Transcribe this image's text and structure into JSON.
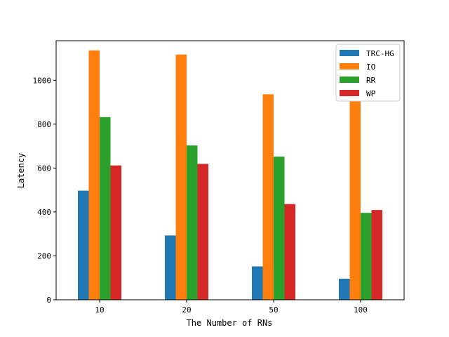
{
  "chart_data": {
    "type": "bar",
    "xlabel": "The Number of RNs",
    "ylabel": "Latency",
    "categories": [
      "10",
      "20",
      "50",
      "100"
    ],
    "ylim": [
      0,
      1180
    ],
    "yticks": [
      0,
      200,
      400,
      600,
      800,
      1000
    ],
    "grid": false,
    "legend_position": "top-right",
    "series": [
      {
        "name": "TRC-HG",
        "color": "#1f77b4",
        "values": [
          497,
          293,
          152,
          96
        ]
      },
      {
        "name": "IO",
        "color": "#ff7f0e",
        "values": [
          1136,
          1117,
          936,
          904
        ]
      },
      {
        "name": "RR",
        "color": "#2ca02c",
        "values": [
          832,
          703,
          652,
          396
        ]
      },
      {
        "name": "WP",
        "color": "#d62728",
        "values": [
          612,
          619,
          436,
          409
        ]
      }
    ]
  }
}
